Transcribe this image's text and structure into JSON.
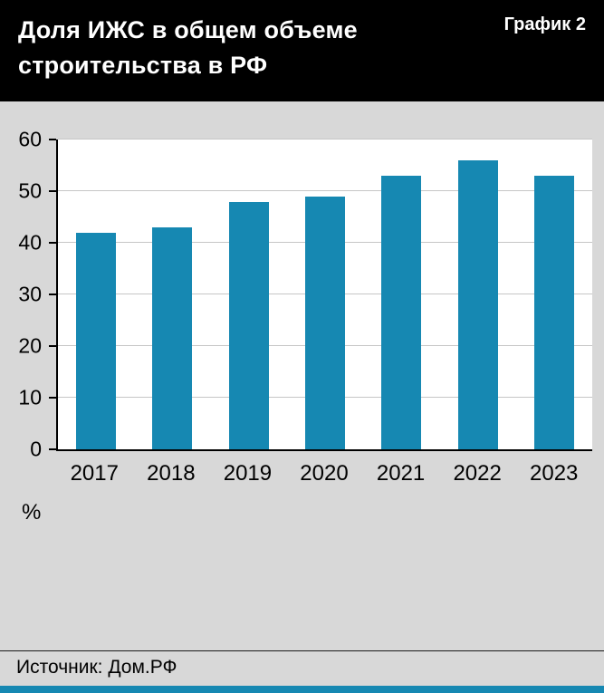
{
  "header": {
    "title": "Доля ИЖС в общем объеме строительства в РФ",
    "chart_label": "График 2"
  },
  "chart_data": {
    "type": "bar",
    "title": "Доля ИЖС в общем объеме строительства в РФ",
    "categories": [
      "2017",
      "2018",
      "2019",
      "2020",
      "2021",
      "2022",
      "2023"
    ],
    "values": [
      42,
      43,
      48,
      49,
      53,
      56,
      53
    ],
    "xlabel": "",
    "ylabel": "%",
    "ylim": [
      0,
      60
    ],
    "yticks": [
      0,
      10,
      20,
      30,
      40,
      50,
      60
    ],
    "grid": true,
    "legend": false,
    "bar_color": "#1688b2"
  },
  "footer": {
    "source": "Источник: Дом.РФ"
  },
  "colors": {
    "accent": "#1688b2",
    "header_bg": "#000000",
    "page_bg": "#d8d8d8",
    "plot_bg": "#ffffff",
    "gridline": "#c6c6c6"
  }
}
